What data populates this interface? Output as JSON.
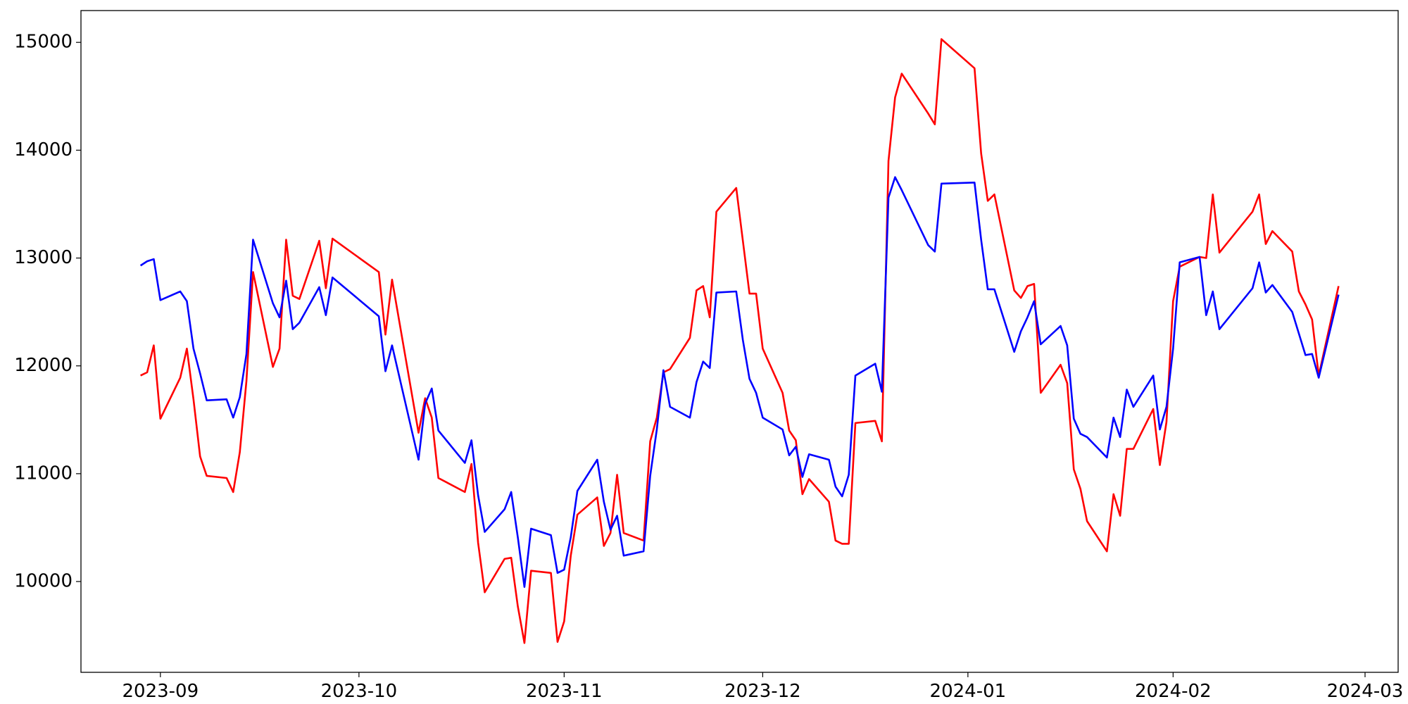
{
  "chart_data": {
    "type": "line",
    "x": [
      19598,
      19599,
      19600,
      19601,
      19604,
      19605,
      19606,
      19607,
      19608,
      19611,
      19612,
      19613,
      19614,
      19615,
      19618,
      19619,
      19620,
      19621,
      19622,
      19625,
      19626,
      19627,
      19634,
      19635,
      19636,
      19640,
      19641,
      19642,
      19643,
      19647,
      19648,
      19649,
      19650,
      19653,
      19654,
      19655,
      19656,
      19657,
      19660,
      19661,
      19662,
      19663,
      19664,
      19667,
      19668,
      19669,
      19670,
      19671,
      19674,
      19675,
      19676,
      19677,
      19678,
      19681,
      19682,
      19683,
      19684,
      19685,
      19688,
      19689,
      19690,
      19691,
      19692,
      19695,
      19696,
      19697,
      19698,
      19699,
      19702,
      19703,
      19704,
      19705,
      19706,
      19709,
      19710,
      19711,
      19712,
      19713,
      19717,
      19718,
      19719,
      19724,
      19725,
      19726,
      19727,
      19730,
      19731,
      19732,
      19733,
      19734,
      19737,
      19738,
      19739,
      19740,
      19741,
      19744,
      19745,
      19746,
      19747,
      19748,
      19751,
      19752,
      19753,
      19754,
      19755,
      19758,
      19759,
      19760,
      19761,
      19766,
      19767,
      19768,
      19769,
      19772,
      19773,
      19774,
      19775,
      19776,
      19779
    ],
    "series": [
      {
        "color": "#ff0000",
        "values": [
          11910,
          11940,
          12190,
          11510,
          11890,
          12160,
          11690,
          11160,
          10980,
          10960,
          10830,
          11200,
          11860,
          12870,
          11990,
          12160,
          13170,
          12650,
          12620,
          13160,
          12720,
          13180,
          12870,
          12290,
          12800,
          11380,
          11700,
          11520,
          10960,
          10830,
          11090,
          10360,
          9900,
          10210,
          10220,
          9770,
          9430,
          10100,
          10080,
          9440,
          9630,
          10240,
          10620,
          10780,
          10330,
          10450,
          10990,
          10450,
          10380,
          11300,
          11520,
          11940,
          11970,
          12260,
          12700,
          12740,
          12450,
          13430,
          13650,
          13160,
          12670,
          12670,
          12160,
          11750,
          11400,
          11310,
          10810,
          10950,
          10740,
          10380,
          10350,
          10350,
          11470,
          11490,
          11300,
          13900,
          14490,
          14710,
          14340,
          14240,
          15030,
          14760,
          13970,
          13530,
          13590,
          12700,
          12630,
          12740,
          12760,
          11750,
          12010,
          11840,
          11040,
          10860,
          10560,
          10280,
          10810,
          10610,
          11230,
          11230,
          11600,
          11080,
          11480,
          12600,
          12920,
          13010,
          13000,
          13590,
          13050,
          13430,
          13590,
          13130,
          13250,
          13060,
          12690,
          12570,
          12430,
          11910,
          12740
        ]
      },
      {
        "color": "#0000ff",
        "values": [
          12930,
          12970,
          12990,
          12610,
          12690,
          12600,
          12160,
          11930,
          11680,
          11690,
          11520,
          11710,
          12110,
          13170,
          12580,
          12450,
          12790,
          12340,
          12400,
          12730,
          12470,
          12820,
          12460,
          11950,
          12190,
          11130,
          11650,
          11790,
          11400,
          11100,
          11310,
          10800,
          10460,
          10670,
          10830,
          10410,
          9950,
          10490,
          10430,
          10080,
          10110,
          10410,
          10840,
          11130,
          10740,
          10480,
          10610,
          10240,
          10280,
          10980,
          11410,
          11960,
          11620,
          11520,
          11850,
          12040,
          11980,
          12680,
          12690,
          12240,
          11880,
          11750,
          11520,
          11410,
          11170,
          11250,
          10970,
          11180,
          11130,
          10880,
          10790,
          10990,
          11910,
          12020,
          11760,
          13560,
          13750,
          13630,
          13120,
          13060,
          13690,
          13700,
          13170,
          12710,
          12710,
          12130,
          12320,
          12450,
          12600,
          12200,
          12370,
          12190,
          11510,
          11370,
          11340,
          11150,
          11520,
          11340,
          11780,
          11620,
          11910,
          11410,
          11620,
          12160,
          12960,
          13010,
          12470,
          12690,
          12340,
          12720,
          12960,
          12680,
          12750,
          12500,
          12300,
          12100,
          12110,
          11890,
          12660
        ]
      }
    ],
    "xlim": [
      19589,
      19788
    ],
    "xticks": [
      {
        "value": 19601,
        "label": "2023-09"
      },
      {
        "value": 19631,
        "label": "2023-10"
      },
      {
        "value": 19662,
        "label": "2023-11"
      },
      {
        "value": 19692,
        "label": "2023-12"
      },
      {
        "value": 19723,
        "label": "2024-01"
      },
      {
        "value": 19754,
        "label": "2024-02"
      },
      {
        "value": 19783,
        "label": "2024-03"
      }
    ],
    "ylim": [
      9158,
      15295
    ],
    "yticks": [
      10000,
      11000,
      12000,
      13000,
      14000,
      15000
    ]
  }
}
